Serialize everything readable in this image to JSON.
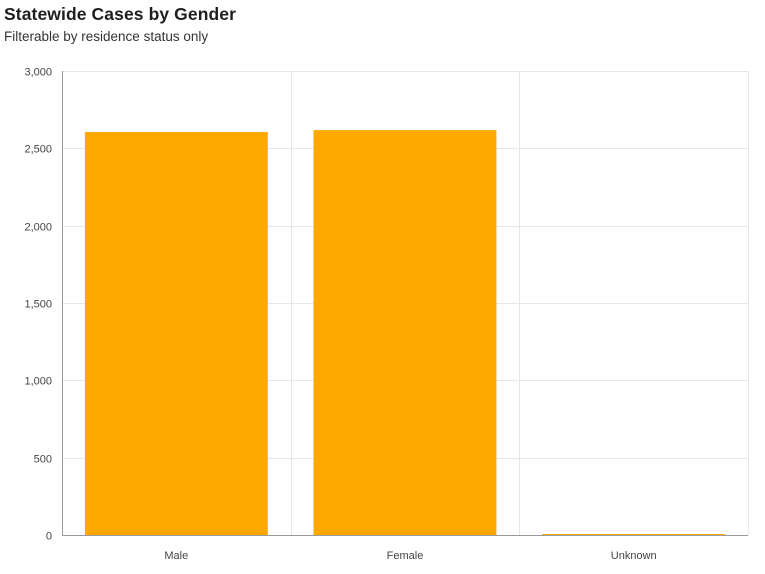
{
  "header": {
    "title": "Statewide Cases by Gender",
    "subtitle": "Filterable by residence status only"
  },
  "colors": {
    "bar": "#FFA800",
    "grid": "#E6E6E6",
    "axis": "#9A9A9A"
  },
  "chart_data": {
    "type": "bar",
    "categories": [
      "Male",
      "Female",
      "Unknown"
    ],
    "values": [
      2605,
      2618,
      5
    ],
    "ylim": [
      0,
      3000
    ],
    "yticks": [
      0,
      500,
      1000,
      1500,
      2000,
      2500,
      3000
    ],
    "ytick_labels": [
      "0",
      "500",
      "1,000",
      "1,500",
      "2,000",
      "2,500",
      "3,000"
    ],
    "grid": true,
    "legend": "none"
  }
}
